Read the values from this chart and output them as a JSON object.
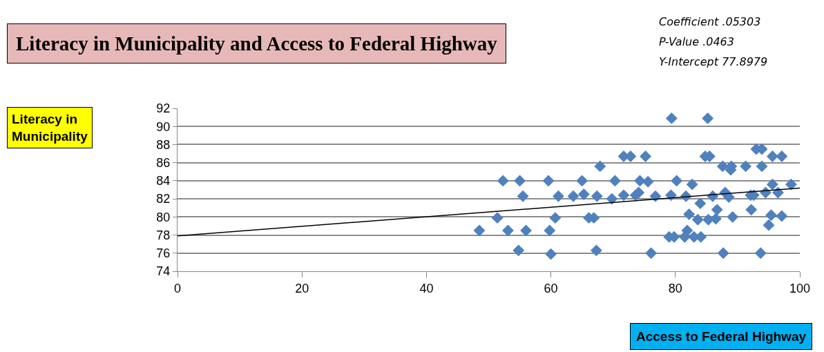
{
  "chart_data": {
    "type": "scatter",
    "title": "Literacy in Municipality and Access to Federal Highway",
    "xlabel": "Access to Federal Highway",
    "annotations": [
      "Coefficient .05303",
      "P-Value .0463",
      "Y-Intercept 77.8979",
      "Literacy in Municipality"
    ],
    "xlim": [
      0,
      100
    ],
    "xticks": [
      0,
      20,
      40,
      60,
      80,
      100
    ],
    "ylim": [
      74,
      92
    ],
    "yticks": [
      74,
      76,
      78,
      80,
      82,
      84,
      86,
      88,
      90,
      92
    ],
    "grid": "y",
    "marker": "diamond",
    "series": [
      {
        "color": "#4f81bd",
        "x": [
          48.5,
          52.3,
          55.0,
          55.5,
          51.4,
          53.1,
          56.0,
          54.8,
          59.6,
          59.8,
          60.0,
          60.7,
          61.2,
          63.6,
          65.0,
          65.3,
          66.1,
          66.9,
          67.4,
          67.3,
          67.9,
          70.3,
          69.8,
          71.7,
          72.8,
          71.7,
          79.4,
          85.2,
          75.2,
          84.8,
          85.5,
          93.0,
          93.9,
          95.6,
          97.1,
          87.6,
          89.0,
          88.9,
          91.3,
          93.9,
          74.3,
          75.6,
          80.2,
          82.7,
          73.6,
          74.1,
          76.8,
          79.3,
          81.7,
          84.0,
          86.0,
          88.0,
          88.6,
          92.1,
          92.6,
          94.5,
          95.6,
          96.5,
          98.6,
          82.2,
          83.6,
          85.3,
          86.5,
          86.7,
          89.2,
          92.2,
          95.4,
          97.1,
          95.0,
          79.0,
          79.8,
          81.5,
          81.9,
          83.0,
          84.1,
          76.1,
          87.7,
          93.7
        ],
        "values": [
          78.5,
          84.0,
          84.0,
          82.3,
          79.9,
          78.5,
          78.5,
          76.3,
          84.0,
          78.5,
          75.9,
          79.9,
          82.3,
          82.3,
          84.0,
          82.5,
          79.9,
          79.9,
          82.3,
          76.3,
          85.6,
          84.0,
          82.0,
          86.7,
          86.7,
          82.4,
          90.9,
          90.9,
          86.7,
          86.7,
          86.7,
          87.5,
          87.5,
          86.7,
          86.7,
          85.6,
          85.6,
          85.2,
          85.6,
          85.6,
          84.0,
          83.9,
          84.0,
          83.6,
          82.4,
          82.7,
          82.3,
          82.4,
          82.3,
          81.5,
          82.3,
          82.7,
          82.2,
          82.4,
          82.4,
          82.7,
          83.6,
          82.7,
          83.6,
          80.3,
          79.7,
          79.7,
          79.8,
          80.8,
          80.0,
          80.8,
          80.2,
          80.1,
          79.1,
          77.8,
          77.8,
          77.8,
          78.5,
          77.8,
          77.8,
          76.0,
          76.0,
          76.0
        ]
      },
      {
        "type": "line",
        "color": "#000000",
        "marker": "none",
        "x": [
          0,
          100
        ],
        "values": [
          77.9,
          83.2
        ]
      }
    ]
  }
}
